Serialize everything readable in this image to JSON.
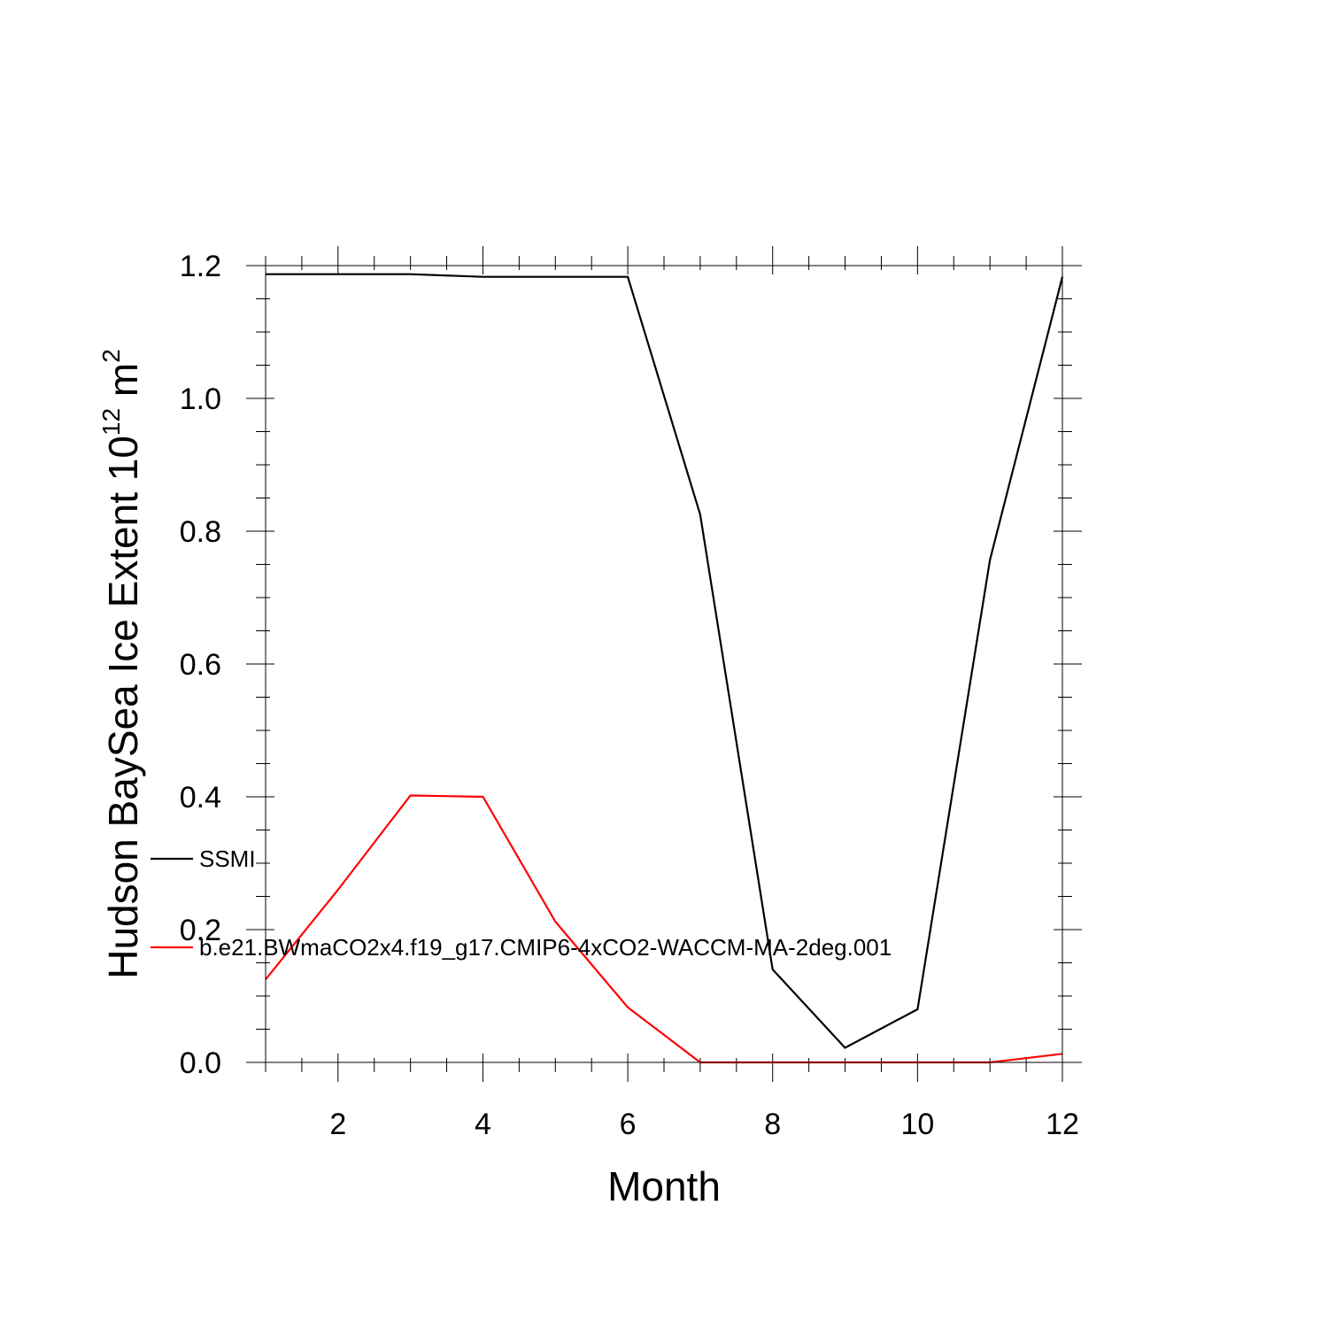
{
  "chart_data": {
    "type": "line",
    "title": "",
    "xlabel": "Month",
    "ylabel": {
      "text": "Hudson BaySea Ice Extent 10",
      "superscript": "12",
      "unit": " m",
      "unit_superscript": "2"
    },
    "xlim": [
      1,
      12
    ],
    "ylim": [
      0.0,
      1.2
    ],
    "x_ticks": [
      2,
      4,
      6,
      8,
      10,
      12
    ],
    "x_tick_labels": [
      "2",
      "4",
      "6",
      "8",
      "10",
      "12"
    ],
    "y_ticks": [
      0.0,
      0.2,
      0.4,
      0.6,
      0.8,
      1.0,
      1.2
    ],
    "y_tick_labels": [
      "0.0",
      "0.2",
      "0.4",
      "0.6",
      "0.8",
      "1.0",
      "1.2"
    ],
    "grid": false,
    "legend_placement": "lower-left, overlapping plot",
    "x": [
      1,
      2,
      3,
      4,
      5,
      6,
      7,
      8,
      9,
      10,
      11,
      12
    ],
    "series": [
      {
        "name": "SSMI",
        "color": "#000000",
        "values": [
          1.187,
          1.187,
          1.187,
          1.183,
          1.183,
          1.183,
          0.825,
          0.14,
          0.022,
          0.08,
          0.757,
          1.183
        ]
      },
      {
        "name": "b.e21.BWmaCO2x4.f19_g17.CMIP6-4xCO2-WACCM-MA-2deg.001",
        "color": "#ff0000",
        "values": [
          0.125,
          0.26,
          0.402,
          0.4,
          0.212,
          0.083,
          0.0,
          0.0,
          0.0,
          0.0,
          0.0,
          0.013
        ]
      }
    ]
  }
}
